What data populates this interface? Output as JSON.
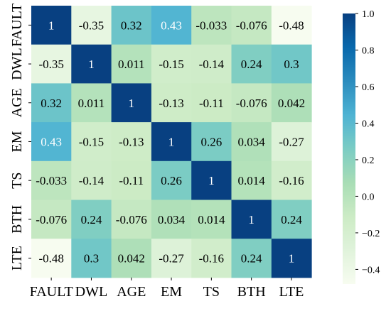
{
  "chart_data": {
    "type": "heatmap",
    "title": "",
    "xlabel": "",
    "ylabel": "",
    "x_categories": [
      "FAULT",
      "DWL",
      "AGE",
      "EM",
      "TS",
      "BTH",
      "LTE"
    ],
    "y_categories": [
      "FAULT",
      "DWL",
      "AGE",
      "EM",
      "TS",
      "BTH",
      "LTE"
    ],
    "values": [
      [
        1,
        -0.35,
        0.32,
        0.43,
        -0.033,
        -0.076,
        -0.48
      ],
      [
        -0.35,
        1,
        0.011,
        -0.15,
        -0.14,
        0.24,
        0.3
      ],
      [
        0.32,
        0.011,
        1,
        -0.13,
        -0.11,
        -0.076,
        0.042
      ],
      [
        0.43,
        -0.15,
        -0.13,
        1,
        0.26,
        0.034,
        -0.27
      ],
      [
        -0.033,
        -0.14,
        -0.11,
        0.26,
        1,
        0.014,
        -0.16
      ],
      [
        -0.076,
        0.24,
        -0.076,
        0.034,
        0.014,
        1,
        0.24
      ],
      [
        -0.48,
        0.3,
        0.042,
        -0.27,
        -0.16,
        0.24,
        1
      ]
    ],
    "cell_labels": [
      [
        "1",
        "-0.35",
        "0.32",
        "0.43",
        "-0.033",
        "-0.076",
        "-0.48"
      ],
      [
        "-0.35",
        "1",
        "0.011",
        "-0.15",
        "-0.14",
        "0.24",
        "0.3"
      ],
      [
        "0.32",
        "0.011",
        "1",
        "-0.13",
        "-0.11",
        "-0.076",
        "0.042"
      ],
      [
        "0.43",
        "-0.15",
        "-0.13",
        "1",
        "0.26",
        "0.034",
        "-0.27"
      ],
      [
        "-0.033",
        "-0.14",
        "-0.11",
        "0.26",
        "1",
        "0.014",
        "-0.16"
      ],
      [
        "-0.076",
        "0.24",
        "-0.076",
        "0.034",
        "0.014",
        "1",
        "0.24"
      ],
      [
        "-0.48",
        "0.3",
        "0.042",
        "-0.27",
        "-0.16",
        "0.24",
        "1"
      ]
    ],
    "colorbar": {
      "range": [
        -0.48,
        1.0
      ],
      "ticks": [
        1.0,
        0.8,
        0.6,
        0.4,
        0.2,
        0.0,
        -0.2,
        -0.4
      ],
      "tick_labels": [
        "1.0",
        "0.8",
        "0.6",
        "0.4",
        "0.2",
        "0.0",
        "−0.2",
        "−0.4"
      ],
      "colormap": "GnBu",
      "colors": [
        "#f7fcf0",
        "#e0f3db",
        "#ccebc5",
        "#a8ddb5",
        "#7bccc4",
        "#4eb3d3",
        "#2b8cbe",
        "#0868ac",
        "#084081"
      ]
    },
    "text_color_dark": "#000000",
    "text_color_light": "#ffffff"
  }
}
